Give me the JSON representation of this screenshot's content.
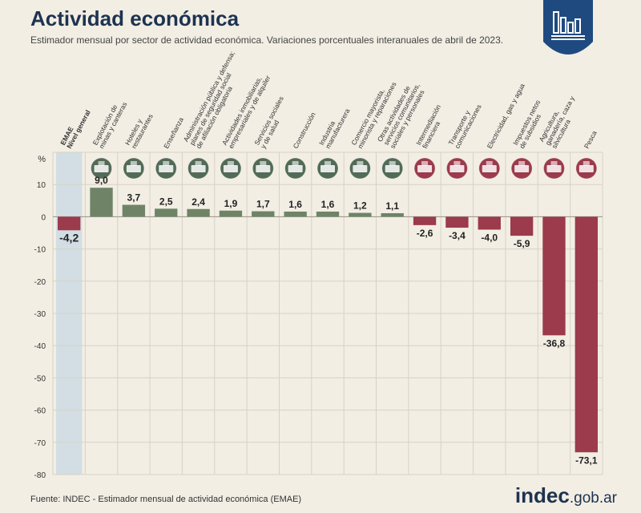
{
  "header": {
    "title": "Actividad económica",
    "subtitle": "Estimador mensual por sector de actividad económica. Variaciones porcentuales interanuales de abril de 2023."
  },
  "footer": {
    "source": "Fuente: INDEC - Estimador mensual de actividad económica (EMAE)",
    "brand_main": "indec",
    "brand_domain": ".gob.ar"
  },
  "colors": {
    "positive": "#6f8466",
    "negative": "#9b3b4b",
    "general": "#9b3b4b",
    "general_column": "#d2dee4",
    "grid": "#d8d2c4",
    "title": "#1e3350"
  },
  "chart_data": {
    "type": "bar",
    "y_unit_label": "%",
    "ylim": [
      -80,
      20
    ],
    "yticks": [
      10,
      0,
      -10,
      -20,
      -30,
      -40,
      -50,
      -60,
      -70,
      -80
    ],
    "grid": true,
    "categories": [
      "EMAE Nivel general",
      "Explotación de minas y canteras",
      "Hoteles y restaurantes",
      "Enseñanza",
      "Administración pública y defensa; planes de seguridad social de afiliación obligatoria",
      "Actividades inmobiliarias, empresariales y de alquiler",
      "Servicios sociales y de salud",
      "Construcción",
      "Industria manufacturera",
      "Comercio mayorista, minorista y reparaciones",
      "Otras actividades de servicios comunitarios, sociales y personales",
      "Intermediación financiera",
      "Transporte y comunicaciones",
      "Electricidad, gas y agua",
      "Impuestos netos de subsidios",
      "Agricultura, ganadería, caza y silvicultura",
      "Pesca"
    ],
    "category_label_lines": [
      [
        "EMAE",
        "Nivel general"
      ],
      [
        "Explotación de",
        "minas y canteras"
      ],
      [
        "Hoteles y",
        "restaurantes"
      ],
      [
        "Enseñanza"
      ],
      [
        "Administración pública y defensa;",
        "planes de seguridad social",
        "de afiliación obligatoria"
      ],
      [
        "Actividades inmobiliarias,",
        "empresariales y de alquiler"
      ],
      [
        "Servicios sociales",
        "y de salud"
      ],
      [
        "Construcción"
      ],
      [
        "Industria",
        "manufacturera"
      ],
      [
        "Comercio mayorista,",
        "minorista y reparaciones"
      ],
      [
        "Otras actividades de",
        "servicios comunitarios,",
        "sociales y personales"
      ],
      [
        "Intermediación",
        "financiera"
      ],
      [
        "Transporte y",
        "comunicaciones"
      ],
      [
        "Electricidad, gas y agua"
      ],
      [
        "Impuestos netos",
        "de subsidios"
      ],
      [
        "Agricultura,",
        "ganadería, caza y",
        "silvicultura"
      ],
      [
        "Pesca"
      ]
    ],
    "values": [
      -4.2,
      9.0,
      3.7,
      2.5,
      2.4,
      1.9,
      1.7,
      1.6,
      1.6,
      1.2,
      1.1,
      -2.6,
      -3.4,
      -4.0,
      -5.9,
      -36.8,
      -73.1
    ],
    "value_labels": [
      "-4,2",
      "9,0",
      "3,7",
      "2,5",
      "2,4",
      "1,9",
      "1,7",
      "1,6",
      "1,6",
      "1,2",
      "1,1",
      "-2,6",
      "-3,4",
      "-4,0",
      "-5,9",
      "-36,8",
      "-73,1"
    ],
    "icons": [
      "",
      "mining-icon",
      "hotel-icon",
      "education-icon",
      "government-icon",
      "real-estate-icon",
      "health-icon",
      "construction-icon",
      "industry-icon",
      "commerce-icon",
      "services-icon",
      "finance-icon",
      "transport-icon",
      "electricity-icon",
      "taxes-icon",
      "agriculture-icon",
      "fishing-icon"
    ]
  }
}
